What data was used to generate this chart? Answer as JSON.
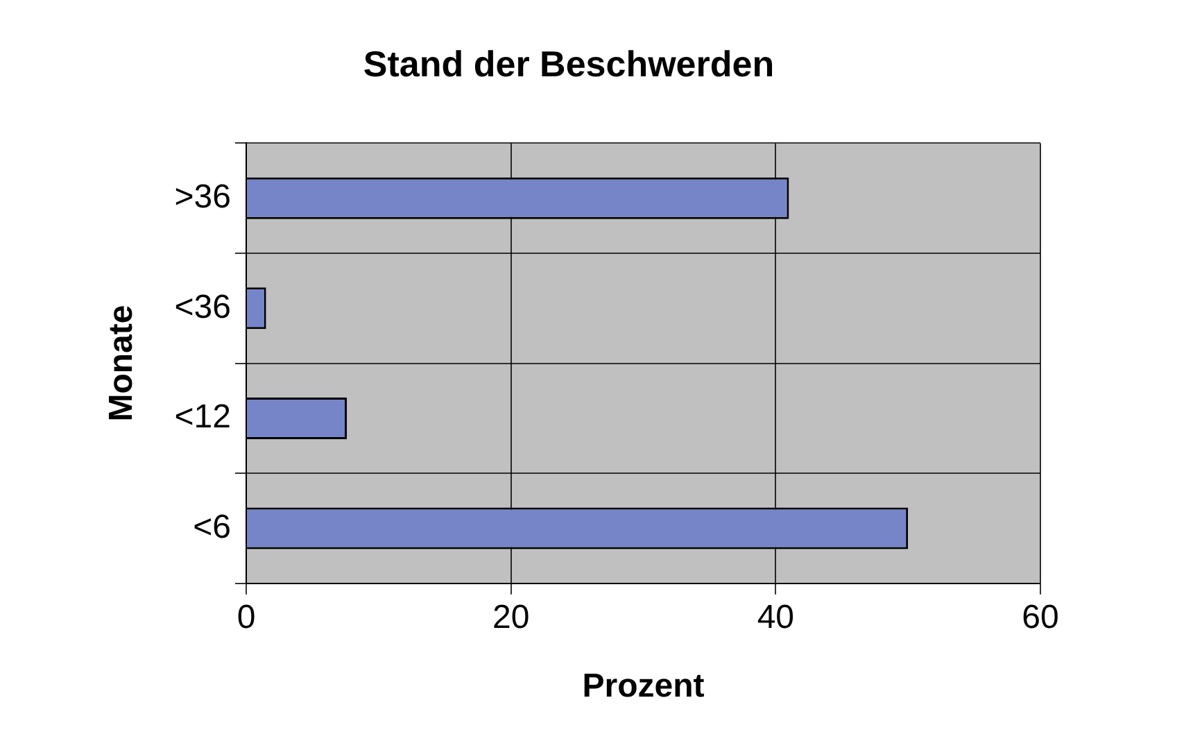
{
  "chart_data": {
    "type": "bar",
    "orientation": "horizontal",
    "title": "Stand der Beschwerden",
    "xlabel": "Prozent",
    "ylabel": "Monate",
    "categories": [
      ">36",
      "<36",
      "<12",
      "<6"
    ],
    "values": [
      41,
      1.5,
      7.6,
      50
    ],
    "color": "#7685c8",
    "xlim": [
      0,
      60
    ],
    "xticks": [
      0,
      20,
      40,
      60
    ],
    "grid": true
  }
}
